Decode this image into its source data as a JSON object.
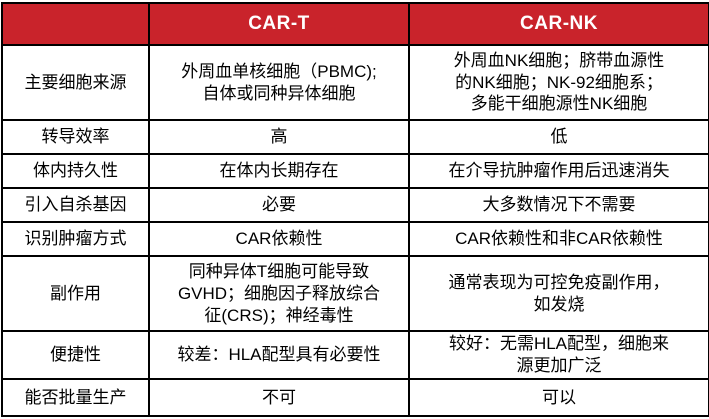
{
  "colors": {
    "header_bg": "#C9232B",
    "header_text": "#FFFFFF",
    "border": "#000000",
    "cell_bg": "#FFFFFF",
    "body_text": "#000000"
  },
  "table": {
    "header": {
      "corner": "",
      "columns": [
        "CAR-T",
        "CAR-NK"
      ]
    },
    "rows": [
      {
        "label": "主要细胞来源",
        "car_t": "外周血单核细胞（PBMC);\n自体或同种异体细胞",
        "car_nk": "外周血NK细胞；脐带血源性\n的NK细胞；NK-92细胞系；\n多能干细胞源性NK细胞"
      },
      {
        "label": "转导效率",
        "car_t": "高",
        "car_nk": "低"
      },
      {
        "label": "体内持久性",
        "car_t": "在体内长期存在",
        "car_nk": "在介导抗肿瘤作用后迅速消失"
      },
      {
        "label": "引入自杀基因",
        "car_t": "必要",
        "car_nk": "大多数情况下不需要"
      },
      {
        "label": "识别肿瘤方式",
        "car_t": "CAR依赖性",
        "car_nk": "CAR依赖性和非CAR依赖性"
      },
      {
        "label": "副作用",
        "car_t": "同种异体T细胞可能导致\nGVHD；细胞因子释放综合\n征(CRS)；神经毒性",
        "car_nk": "通常表现为可控免疫副作用，\n如发烧"
      },
      {
        "label": "便捷性",
        "car_t": "较差：HLA配型具有必要性",
        "car_nk": "较好：无需HLA配型，细胞来\n源更加广泛"
      },
      {
        "label": "能否批量生产",
        "car_t": "不可",
        "car_nk": "可以"
      }
    ]
  }
}
